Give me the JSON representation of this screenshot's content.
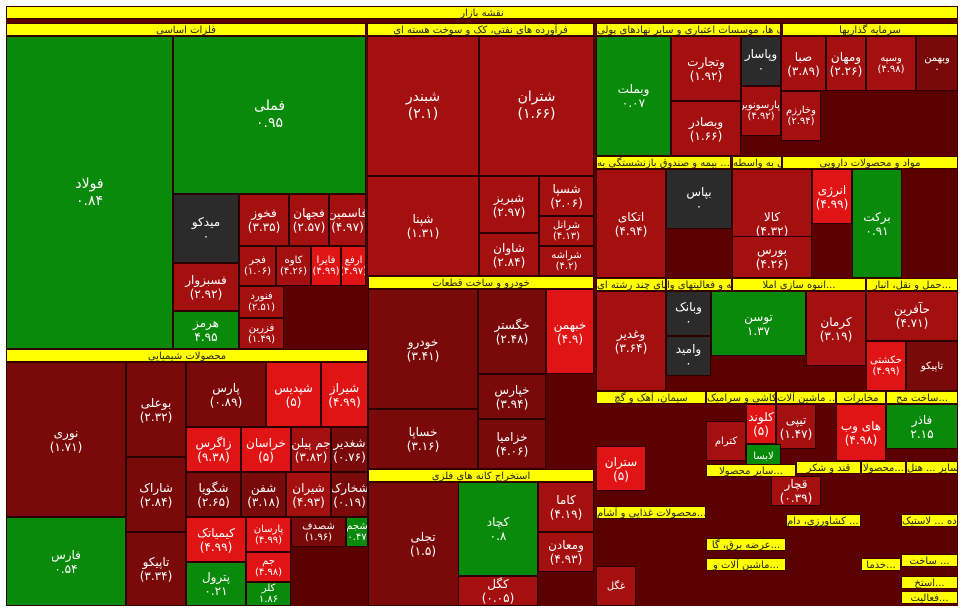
{
  "colors": {
    "strong_green": "#0a8a0a",
    "green": "#2e9b2e",
    "neutral": "#2b2b2b",
    "light_red": "#e01414",
    "red": "#a40f0f",
    "dark_red": "#7a0a0a",
    "header": "#ffff00"
  },
  "chart_data": {
    "type": "treemap",
    "title": "نقشه بازار",
    "sectors": [
      "فلزات اساسی",
      "فرآورده های نفتی، کک و سوخت هسته ای",
      "بانک ها، موسسات اعتباری و سایر نهادهای پولی",
      "سرمایه گذاریها",
      "محصولات شیمیایی",
      "خودرو و ساخت قطعات",
      "استخراج کانه های فلزی",
      "مواد و محصولات دارویی",
      "بیمه و صندوق بازنشستگی به ...",
      "فعالیت های جنبی به واسطه ...",
      "حمل و نقل، انبار...",
      "انبوه سازی املا...",
      "رایانه و فعالیتهای وا...",
      "شرکتهای چند رشته ای ...",
      "سیمان، آهک و گچ",
      "کاشی و سرامیک",
      "ماشین آلات ...",
      "مخابرات",
      "ساخت مح...",
      "سایر محصولا...",
      "قند و شکر",
      "محصولا...",
      "سایر ... هتل",
      "محصولات غذایی و آشام...",
      "تولید ... کشاورزی، دام...",
      "خرده ... لاستیک...",
      "عرضه برق، گا...",
      "ماشین آلات و...",
      "خدما...",
      "ساخت ...",
      "استخ...",
      "فعالیت..."
    ],
    "tiles": [
      {
        "symbol": "فولاد",
        "change": "۰.۸۴",
        "sector": "فلزات اساسی"
      },
      {
        "symbol": "فملی",
        "change": "۰.۹۵",
        "sector": "فلزات اساسی"
      },
      {
        "symbol": "میدکو",
        "change": "۰",
        "sector": "فلزات اساسی"
      },
      {
        "symbol": "فخوز",
        "change": "(۳.۳۵)",
        "sector": "فلزات اساسی"
      },
      {
        "symbol": "فجهان",
        "change": "(۲.۵۷)",
        "sector": "فلزات اساسی"
      },
      {
        "symbol": "فاسمین",
        "change": "(۴.۹۷)",
        "sector": "فلزات اساسی"
      },
      {
        "symbol": "فسبزوار",
        "change": "(۲.۹۲)",
        "sector": "فلزات اساسی"
      },
      {
        "symbol": "فجر",
        "change": "(۱.۰۶)",
        "sector": "فلزات اساسی"
      },
      {
        "symbol": "کاوه",
        "change": "(۴.۲۶)",
        "sector": "فلزات اساسی"
      },
      {
        "symbol": "فایرا",
        "change": "(۴.۹۹)",
        "sector": "فلزات اساسی"
      },
      {
        "symbol": "ارفع",
        "change": "(۴.۹۷)",
        "sector": "فلزات اساسی"
      },
      {
        "symbol": "هرمز",
        "change": "۴.۹۵",
        "sector": "فلزات اساسی"
      },
      {
        "symbol": "فنورد",
        "change": "(۲.۵۱)",
        "sector": "فلزات اساسی"
      },
      {
        "symbol": "فزرین",
        "change": "(۱.۴۹)",
        "sector": "فلزات اساسی"
      },
      {
        "symbol": "شبندر",
        "change": "(۲.۱)",
        "sector": "فرآورده های نفتی، کک و سوخت هسته ای"
      },
      {
        "symbol": "شتران",
        "change": "(۱.۶۶)",
        "sector": "فرآورده های نفتی، کک و سوخت هسته ای"
      },
      {
        "symbol": "شپنا",
        "change": "(۱.۳۱)",
        "sector": "فرآورده های نفتی، کک و سوخت هسته ای"
      },
      {
        "symbol": "شبریز",
        "change": "(۲.۹۷)",
        "sector": "فرآورده های نفتی، کک و سوخت هسته ای"
      },
      {
        "symbol": "شسپا",
        "change": "(۲.۰۶)",
        "sector": "فرآورده های نفتی، کک و سوخت هسته ای"
      },
      {
        "symbol": "شاوان",
        "change": "(۲.۸۴)",
        "sector": "فرآورده های نفتی، کک و سوخت هسته ای"
      },
      {
        "symbol": "شرانل",
        "change": "(۴.۱۳)",
        "sector": "فرآورده های نفتی، کک و سوخت هسته ای"
      },
      {
        "symbol": "شراشه",
        "change": "(۴.۲)",
        "sector": "فرآورده های نفتی، کک و سوخت هسته ای"
      },
      {
        "symbol": "وبملت",
        "change": "۰.۰۷",
        "sector": "بانک ها، موسسات اعتباری و سایر نهادهای پولی"
      },
      {
        "symbol": "وتجارت",
        "change": "(۱.۹۲)",
        "sector": "بانک ها، موسسات اعتباری و سایر نهادهای پولی"
      },
      {
        "symbol": "وپاسار",
        "change": "۰",
        "sector": "بانک ها، موسسات اعتباری و سایر نهادهای پولی"
      },
      {
        "symbol": "وبصادر",
        "change": "(۱.۶۶)",
        "sector": "بانک ها، موسسات اعتباری و سایر نهادهای پولی"
      },
      {
        "symbol": "صبا",
        "change": "(۳.۸۹)",
        "sector": "سرمایه گذاریها"
      },
      {
        "symbol": "ومهان",
        "change": "(۲.۲۶)",
        "sector": "سرمایه گذاریها"
      },
      {
        "symbol": "وسپه",
        "change": "(۴.۹۸)",
        "sector": "سرمایه گذاریها"
      },
      {
        "symbol": "وبهمن",
        "change": "۰",
        "sector": "سرمایه گذاریها"
      },
      {
        "symbol": "وپارسونوین",
        "change": "(۴.۹۲)",
        "sector": "سرمایه گذاریها"
      },
      {
        "symbol": "وخارزم",
        "change": "(۲.۹۴)",
        "sector": "سرمایه گذاریها"
      },
      {
        "symbol": "اتکای",
        "change": "(۴.۹۴)",
        "sector": "بیمه و صندوق بازنشستگی به ..."
      },
      {
        "symbol": "بپاس",
        "change": "۰",
        "sector": "بیمه و صندوق بازنشستگی به ..."
      },
      {
        "symbol": "کالا",
        "change": "(۴.۳۲)",
        "sector": "فعالیت های جنبی به واسطه ..."
      },
      {
        "symbol": "انرژی",
        "change": "(۴.۹۹)",
        "sector": "فعالیت های جنبی به واسطه ..."
      },
      {
        "symbol": "برکت",
        "change": "۰.۹۱",
        "sector": "مواد و محصولات دارویی"
      },
      {
        "symbol": "بورس",
        "change": "(۴.۲۶)",
        "sector": "فعالیت های جنبی به واسطه ..."
      },
      {
        "symbol": "نوری",
        "change": "(۱.۷۱)",
        "sector": "محصولات شیمیایی"
      },
      {
        "symbol": "بوعلی",
        "change": "(۲.۳۲)",
        "sector": "محصولات شیمیایی"
      },
      {
        "symbol": "پارس",
        "change": "(۰.۸۹)",
        "sector": "محصولات شیمیایی"
      },
      {
        "symbol": "شپدیس",
        "change": "(۵)",
        "sector": "محصولات شیمیایی"
      },
      {
        "symbol": "شیراز",
        "change": "(۴.۹۹)",
        "sector": "محصولات شیمیایی"
      },
      {
        "symbol": "زاگرس",
        "change": "(۹.۳۸)",
        "sector": "محصولات شیمیایی"
      },
      {
        "symbol": "خراسان",
        "change": "(۵)",
        "sector": "محصولات شیمیایی"
      },
      {
        "symbol": "جم پیلن",
        "change": "(۳.۸۲)",
        "sector": "محصولات شیمیایی"
      },
      {
        "symbol": "شغدیر",
        "change": "(۰.۷۶)",
        "sector": "محصولات شیمیایی"
      },
      {
        "symbol": "شاراک",
        "change": "(۲.۸۴)",
        "sector": "محصولات شیمیایی"
      },
      {
        "symbol": "شگویا",
        "change": "(۲.۶۵)",
        "sector": "محصولات شیمیایی"
      },
      {
        "symbol": "شفن",
        "change": "(۳.۱۸)",
        "sector": "محصولات شیمیایی"
      },
      {
        "symbol": "شیران",
        "change": "(۴.۹۳)",
        "sector": "محصولات شیمیایی"
      },
      {
        "symbol": "شخارک",
        "change": "(۰.۱۹)",
        "sector": "محصولات شیمیایی"
      },
      {
        "symbol": "فارس",
        "change": "۰.۵۴",
        "sector": "محصولات شیمیایی"
      },
      {
        "symbol": "تاپیکو",
        "change": "(۳.۳۴)",
        "sector": "محصولات شیمیایی"
      },
      {
        "symbol": "کیمیاتک",
        "change": "(۴.۹۹)",
        "sector": "محصولات شیمیایی"
      },
      {
        "symbol": "پارسان",
        "change": "(۴.۹۹)",
        "sector": "محصولات شیمیایی"
      },
      {
        "symbol": "جم",
        "change": "(۴.۹۸)",
        "sector": "محصولات شیمیایی"
      },
      {
        "symbol": "پترول",
        "change": "۰.۲۱",
        "sector": "محصولات شیمیایی"
      },
      {
        "symbol": "کلر",
        "change": "۱.۸۶",
        "sector": "محصولات شیمیایی"
      },
      {
        "symbol": "شجم",
        "change": "۰.۴۷",
        "sector": "محصولات شیمیایی"
      },
      {
        "symbol": "شصدف",
        "change": "(۱.۹۶)",
        "sector": "محصولات شیمیایی"
      },
      {
        "symbol": "خودرو",
        "change": "(۳.۴۱)",
        "sector": "خودرو و ساخت قطعات"
      },
      {
        "symbol": "خگستر",
        "change": "(۲.۴۸)",
        "sector": "خودرو و ساخت قطعات"
      },
      {
        "symbol": "خبهمن",
        "change": "(۴.۹)",
        "sector": "خودرو و ساخت قطعات"
      },
      {
        "symbol": "خساپا",
        "change": "(۳.۱۶)",
        "sector": "خودرو و ساخت قطعات"
      },
      {
        "symbol": "خپارس",
        "change": "(۳.۹۴)",
        "sector": "خودرو و ساخت قطعات"
      },
      {
        "symbol": "خزامیا",
        "change": "(۴.۰۶)",
        "sector": "خودرو و ساخت قطعات"
      },
      {
        "symbol": "تجلی",
        "change": "(۱.۵)",
        "sector": "استخراج کانه های فلزی"
      },
      {
        "symbol": "کچاد",
        "change": "۰.۸",
        "sector": "استخراج کانه های فلزی"
      },
      {
        "symbol": "کاما",
        "change": "(۴.۱۹)",
        "sector": "استخراج کانه های فلزی"
      },
      {
        "symbol": "ومعادن",
        "change": "(۴.۹۳)",
        "sector": "استخراج کانه های فلزی"
      },
      {
        "symbol": "کگل",
        "change": "(۰.۰۵)",
        "sector": "استخراج کانه های فلزی"
      },
      {
        "symbol": "وغدیر",
        "change": "(۳.۶۴)",
        "sector": "شرکتهای چند رشته ای ..."
      },
      {
        "symbol": "وبانک",
        "change": "۰",
        "sector": "شرکتهای چند رشته ای ..."
      },
      {
        "symbol": "وامید",
        "change": "۰",
        "sector": "شرکتهای چند رشته ای ..."
      },
      {
        "symbol": "توسن",
        "change": "۱.۳۷",
        "sector": "رایانه و فعالیتهای وا..."
      },
      {
        "symbol": "کرمان",
        "change": "(۳.۱۹)",
        "sector": "انبوه سازی املا..."
      },
      {
        "symbol": "حآفرین",
        "change": "(۴.۷۱)",
        "sector": "حمل و نقل، انبار..."
      },
      {
        "symbol": "حکشتی",
        "change": "(۴.۹۹)",
        "sector": "حمل و نقل، انبار..."
      },
      {
        "symbol": "تاپیکو",
        "change": "",
        "sector": "حمل و نقل، انبار..."
      },
      {
        "symbol": "های وب",
        "change": "(۴.۹۸)",
        "sector": "مخابرات"
      },
      {
        "symbol": "فاذر",
        "change": "۲.۱۵",
        "sector": "ساخت مح..."
      },
      {
        "symbol": "کلوند",
        "change": "(۵)",
        "sector": "کاشی و سرامیک"
      },
      {
        "symbol": "تیپی",
        "change": "(۱.۴۷)",
        "sector": "ماشین آلات ..."
      },
      {
        "symbol": "لابسا",
        "change": "",
        "sector": "ماشین آلات ..."
      },
      {
        "symbol": "کترام",
        "change": "",
        "sector": "کاشی و سرامیک"
      },
      {
        "symbol": "ستران",
        "change": "(۵)",
        "sector": "سیمان، آهک و گچ"
      },
      {
        "symbol": "قچار",
        "change": "(۰.۳۹)",
        "sector": "قند و شکر"
      },
      {
        "symbol": "غگل",
        "change": "",
        "sector": "محصولات غذایی و آشام..."
      }
    ]
  }
}
